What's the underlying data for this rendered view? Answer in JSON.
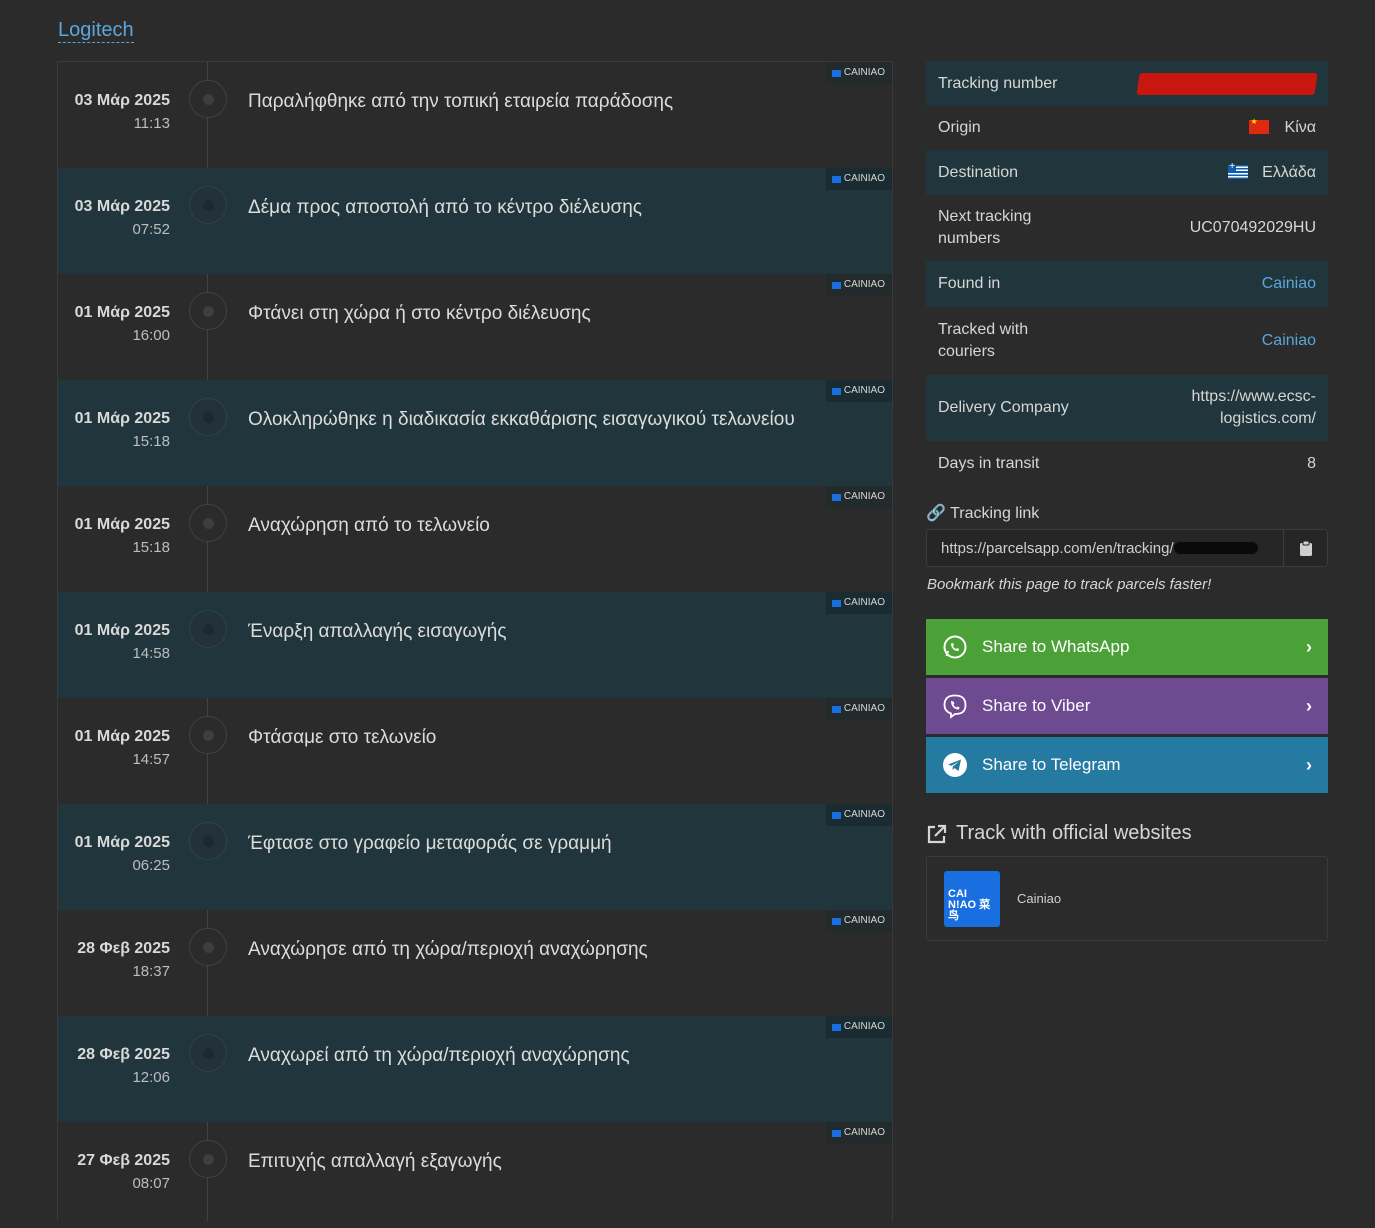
{
  "brand": "Logitech",
  "events": [
    {
      "date": "03 Μάρ 2025",
      "time": "11:13",
      "text": "Παραλήφθηκε από την τοπική εταιρεία παράδοσης",
      "source": "CAINIAO"
    },
    {
      "date": "03 Μάρ 2025",
      "time": "07:52",
      "text": "Δέμα προς αποστολή από το κέντρο διέλευσης",
      "source": "CAINIAO"
    },
    {
      "date": "01 Μάρ 2025",
      "time": "16:00",
      "text": "Φτάνει στη χώρα ή στο κέντρο διέλευσης",
      "source": "CAINIAO"
    },
    {
      "date": "01 Μάρ 2025",
      "time": "15:18",
      "text": "Ολοκληρώθηκε η διαδικασία εκκαθάρισης εισαγωγικού τελωνείου",
      "source": "CAINIAO"
    },
    {
      "date": "01 Μάρ 2025",
      "time": "15:18",
      "text": "Αναχώρηση από το τελωνείο",
      "source": "CAINIAO"
    },
    {
      "date": "01 Μάρ 2025",
      "time": "14:58",
      "text": "Έναρξη απαλλαγής εισαγωγής",
      "source": "CAINIAO"
    },
    {
      "date": "01 Μάρ 2025",
      "time": "14:57",
      "text": "Φτάσαμε στο τελωνείο",
      "source": "CAINIAO"
    },
    {
      "date": "01 Μάρ 2025",
      "time": "06:25",
      "text": "Έφτασε στο γραφείο μεταφοράς σε γραμμή",
      "source": "CAINIAO"
    },
    {
      "date": "28 Φεβ 2025",
      "time": "18:37",
      "text": "Αναχώρησε από τη χώρα/περιοχή αναχώρησης",
      "source": "CAINIAO"
    },
    {
      "date": "28 Φεβ 2025",
      "time": "12:06",
      "text": "Αναχωρεί από τη χώρα/περιοχή αναχώρησης",
      "source": "CAINIAO"
    },
    {
      "date": "27 Φεβ 2025",
      "time": "08:07",
      "text": "Επιτυχής απαλλαγή εξαγωγής",
      "source": "CAINIAO"
    }
  ],
  "info": {
    "tracking_number_label": "Tracking number",
    "origin_label": "Origin",
    "origin_value": "Κίνα",
    "destination_label": "Destination",
    "destination_value": "Ελλάδα",
    "next_tracking_label_1": "Next tracking",
    "next_tracking_label_2": "numbers",
    "next_tracking_value": "UC070492029HU",
    "found_in_label": "Found in",
    "found_in_value": "Cainiao",
    "tracked_with_label_1": "Tracked with",
    "tracked_with_label_2": "couriers",
    "tracked_with_value": "Cainiao",
    "delivery_company_label": "Delivery Company",
    "delivery_company_value_1": "https://www.ecsc-",
    "delivery_company_value_2": "logistics.com/",
    "days_in_transit_label": "Days in transit",
    "days_in_transit_value": "8"
  },
  "tracking_link": {
    "label": "Tracking link",
    "url": "https://parcelsapp.com/en/tracking/"
  },
  "bookmark_text": "Bookmark this page to track parcels faster!",
  "share": {
    "whatsapp": "Share to WhatsApp",
    "viber": "Share to Viber",
    "telegram": "Share to Telegram"
  },
  "official": {
    "title": "Track with official websites",
    "logo_line1": "CAI",
    "logo_line2": "N!AO 菜鸟",
    "name": "Cainiao"
  },
  "colors": {
    "background": "#2b2b2b",
    "row_alt": "#21363c",
    "link": "#5aa6dd",
    "whatsapp": "#4ca038",
    "viber": "#6e4a91",
    "telegram": "#257aa2",
    "cainiao_blue": "#1a6fe0"
  }
}
